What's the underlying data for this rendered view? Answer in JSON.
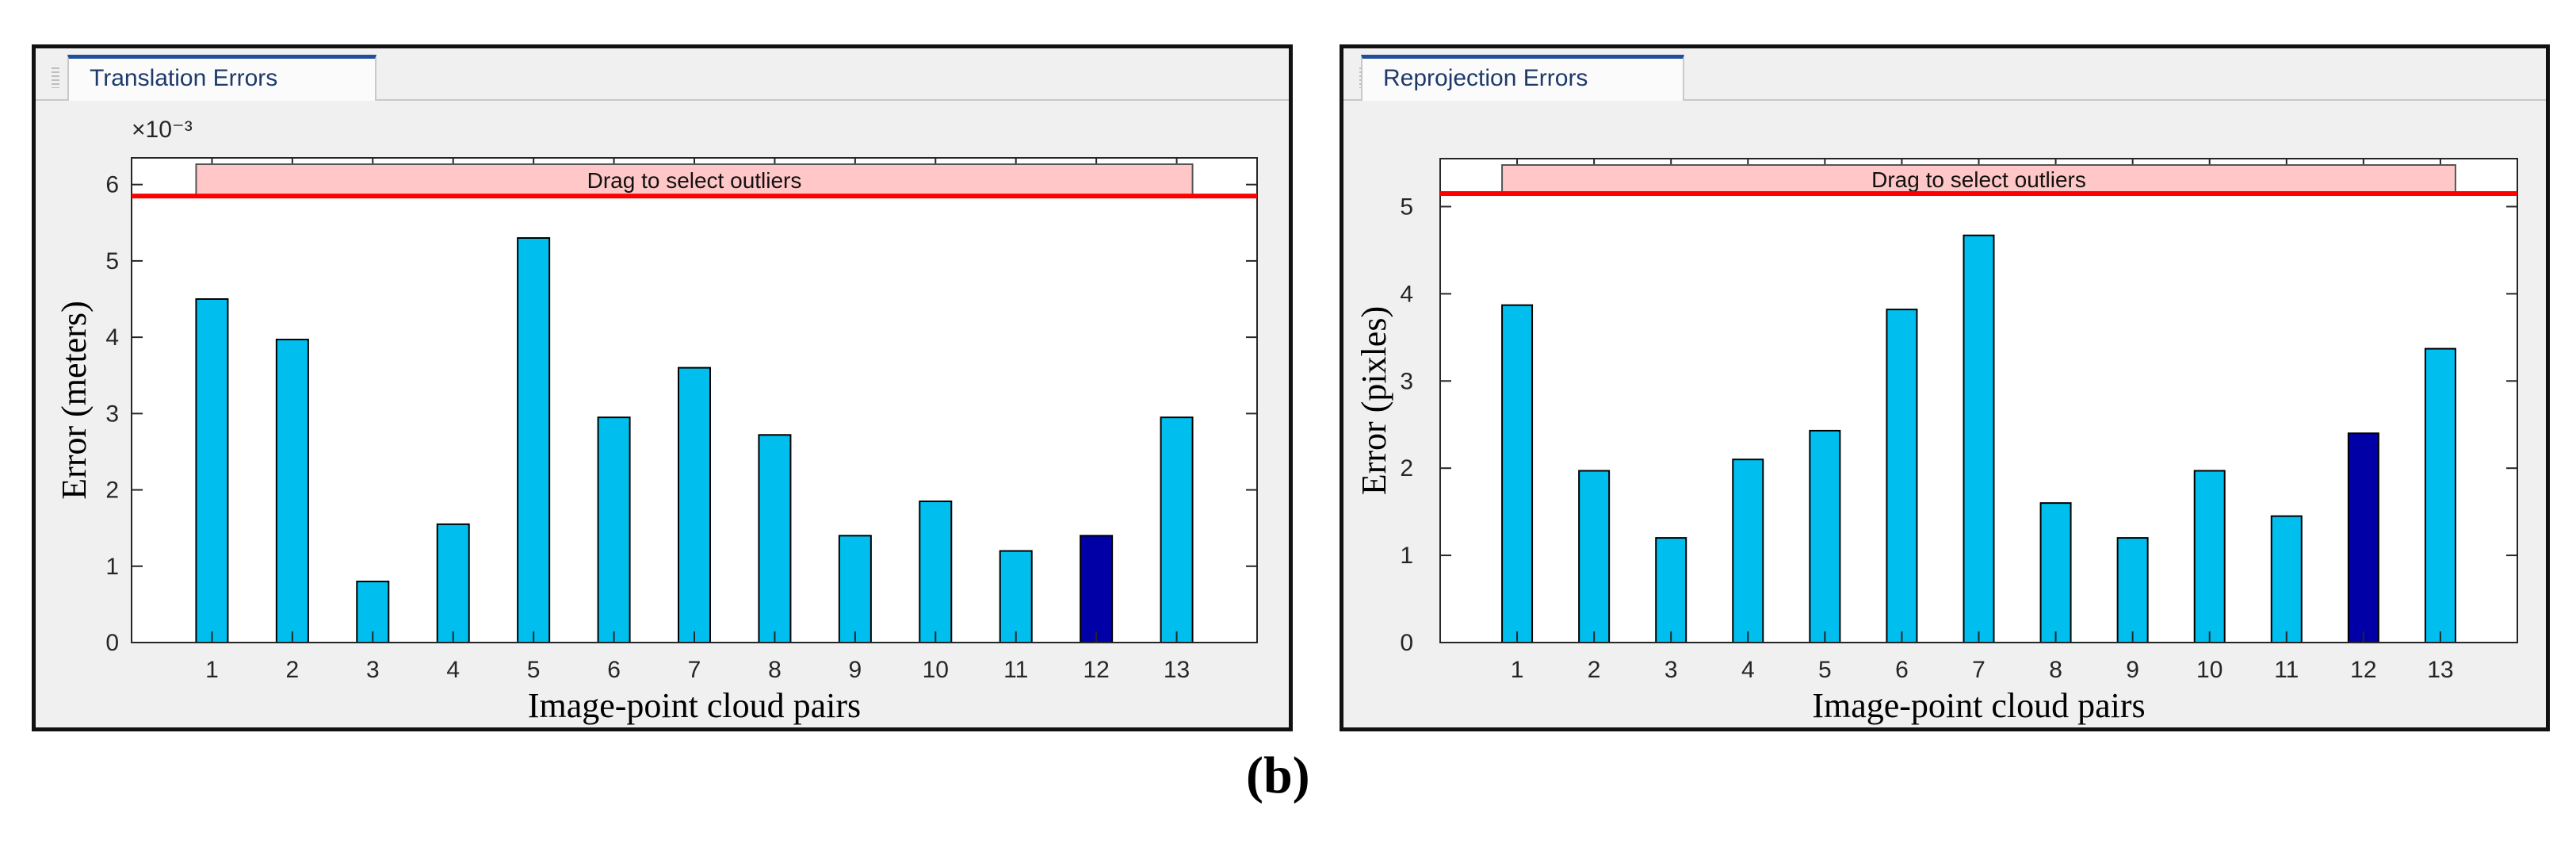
{
  "caption": "(b)",
  "charts": [
    {
      "tab_label": "Translation Errors",
      "exponent_label": "×10⁻³",
      "outlier_label": "Drag to select outliers",
      "threshold": 5.85,
      "colors": {
        "bar": "#00bfee",
        "selected": "#0000a6",
        "threshold": "#ff0000",
        "band": "#ffc7c7"
      }
    },
    {
      "tab_label": "Reprojection Errors",
      "exponent_label": "",
      "outlier_label": "Drag to select outliers",
      "threshold": 5.15,
      "colors": {
        "bar": "#00bfee",
        "selected": "#0000a6",
        "threshold": "#ff0000",
        "band": "#ffc7c7"
      }
    }
  ],
  "chart_data": [
    {
      "type": "bar",
      "title": "Translation Errors",
      "categories": [
        "1",
        "2",
        "3",
        "4",
        "5",
        "6",
        "7",
        "8",
        "9",
        "10",
        "11",
        "12",
        "13"
      ],
      "values": [
        4.5,
        3.97,
        0.8,
        1.55,
        5.3,
        2.95,
        3.6,
        2.72,
        1.4,
        1.85,
        1.2,
        1.4,
        2.95
      ],
      "selected_index": 11,
      "xlabel": "Image-point cloud pairs",
      "ylabel": "Error (meters)",
      "ylim": [
        0,
        6.35
      ],
      "yticks": [
        0,
        1,
        2,
        3,
        4,
        5,
        6
      ],
      "scale_note": "×10⁻³"
    },
    {
      "type": "bar",
      "title": "Reprojection Errors",
      "categories": [
        "1",
        "2",
        "3",
        "4",
        "5",
        "6",
        "7",
        "8",
        "9",
        "10",
        "11",
        "12",
        "13"
      ],
      "values": [
        3.87,
        1.97,
        1.2,
        2.1,
        2.43,
        3.82,
        4.67,
        1.6,
        1.2,
        1.97,
        1.45,
        2.4,
        3.37
      ],
      "selected_index": 11,
      "xlabel": "Image-point cloud pairs",
      "ylabel": "Error (pixles)",
      "ylim": [
        0,
        5.55
      ],
      "yticks": [
        0,
        1,
        2,
        3,
        4,
        5
      ]
    }
  ]
}
